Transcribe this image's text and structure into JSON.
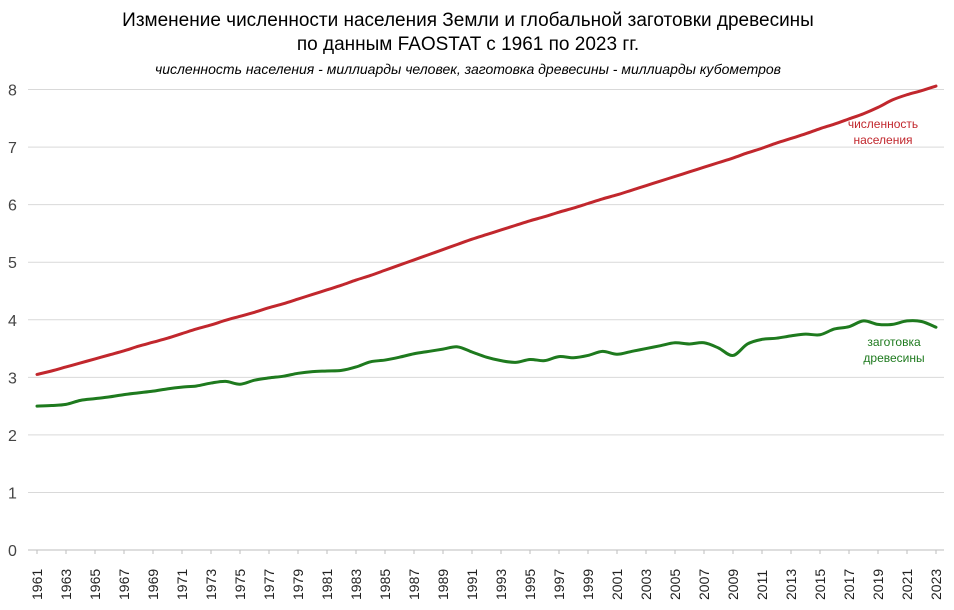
{
  "chart_data": {
    "type": "line",
    "title_lines": [
      "Изменение численности населения Земли и глобальной заготовки древесины",
      "по данным FAOSTAT с 1961 по 2023 гг."
    ],
    "subtitle": "численность населения - миллиарды человек, заготовка древесины - миллиарды кубометров",
    "ylim": [
      0,
      8.6
    ],
    "yticks": [
      "0",
      "1",
      "2",
      "3",
      "4",
      "5",
      "6",
      "7",
      "8"
    ],
    "xtick_labels": [
      "1961",
      "1963",
      "1965",
      "1967",
      "1969",
      "1971",
      "1973",
      "1975",
      "1977",
      "1979",
      "1981",
      "1983",
      "1985",
      "1987",
      "1989",
      "1991",
      "1993",
      "1995",
      "1997",
      "1999",
      "2001",
      "2003",
      "2005",
      "2007",
      "2009",
      "2011",
      "2013",
      "2015",
      "2017",
      "2019",
      "2021",
      "2023"
    ],
    "grid": true,
    "x": [
      1961,
      1962,
      1963,
      1964,
      1965,
      1966,
      1967,
      1968,
      1969,
      1970,
      1971,
      1972,
      1973,
      1974,
      1975,
      1976,
      1977,
      1978,
      1979,
      1980,
      1981,
      1982,
      1983,
      1984,
      1985,
      1986,
      1987,
      1988,
      1989,
      1990,
      1991,
      1992,
      1993,
      1994,
      1995,
      1996,
      1997,
      1998,
      1999,
      2000,
      2001,
      2002,
      2003,
      2004,
      2005,
      2006,
      2007,
      2008,
      2009,
      2010,
      2011,
      2012,
      2013,
      2014,
      2015,
      2016,
      2017,
      2018,
      2019,
      2020,
      2021,
      2022,
      2023
    ],
    "series": [
      {
        "name": "численность населения",
        "label_lines": [
          "численность",
          "населения"
        ],
        "color": "#c1272d",
        "values": [
          3.05,
          3.11,
          3.18,
          3.25,
          3.32,
          3.39,
          3.46,
          3.54,
          3.61,
          3.68,
          3.76,
          3.84,
          3.91,
          3.99,
          4.06,
          4.13,
          4.21,
          4.28,
          4.36,
          4.44,
          4.52,
          4.6,
          4.69,
          4.77,
          4.86,
          4.95,
          5.04,
          5.13,
          5.22,
          5.31,
          5.4,
          5.48,
          5.56,
          5.64,
          5.72,
          5.79,
          5.87,
          5.94,
          6.02,
          6.1,
          6.17,
          6.25,
          6.33,
          6.41,
          6.49,
          6.57,
          6.65,
          6.73,
          6.81,
          6.9,
          6.98,
          7.07,
          7.15,
          7.23,
          7.32,
          7.4,
          7.49,
          7.58,
          7.69,
          7.82,
          7.91,
          7.98,
          8.06
        ]
      },
      {
        "name": "заготовка древесины",
        "label_lines": [
          "заготовка",
          "древесины"
        ],
        "color": "#1e7a1e",
        "values": [
          2.5,
          2.51,
          2.53,
          2.6,
          2.63,
          2.66,
          2.7,
          2.73,
          2.76,
          2.8,
          2.83,
          2.85,
          2.9,
          2.93,
          2.88,
          2.95,
          2.99,
          3.02,
          3.07,
          3.1,
          3.11,
          3.12,
          3.18,
          3.27,
          3.3,
          3.35,
          3.41,
          3.45,
          3.49,
          3.53,
          3.44,
          3.35,
          3.29,
          3.26,
          3.31,
          3.29,
          3.36,
          3.34,
          3.38,
          3.45,
          3.4,
          3.45,
          3.5,
          3.55,
          3.6,
          3.58,
          3.6,
          3.51,
          3.38,
          3.58,
          3.66,
          3.68,
          3.72,
          3.75,
          3.74,
          3.84,
          3.88,
          3.98,
          3.92,
          3.92,
          3.98,
          3.97,
          3.87
        ]
      }
    ]
  }
}
